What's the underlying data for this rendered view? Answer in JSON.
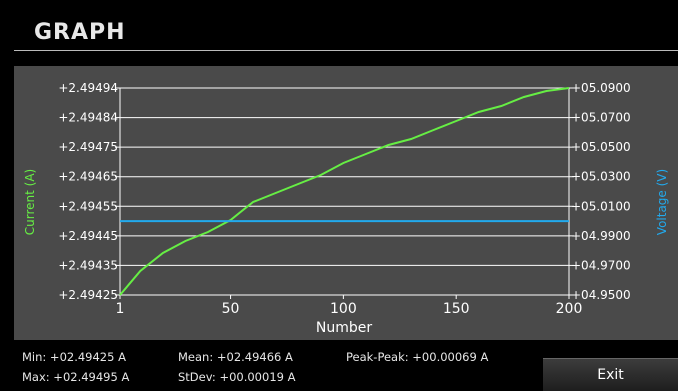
{
  "title": "GRAPH",
  "stats": {
    "min": "Min: +02.49425 A",
    "max": "Max: +02.49495 A",
    "mean": "Mean: +02.49466 A",
    "stdev": "StDev: +00.00019 A",
    "peak_peak": "Peak-Peak: +00.00069 A"
  },
  "exit_label": "Exit",
  "chart_data": {
    "type": "line",
    "xlabel": "Number",
    "ylabel_left": "Current (A)",
    "ylabel_right": "Voltage (V)",
    "x_ticks": [
      "1",
      "50",
      "100",
      "150",
      "200"
    ],
    "xlim": [
      1,
      200
    ],
    "y_left_ticks": [
      "+2.49494",
      "+2.49484",
      "+2.49475",
      "+2.49465",
      "+2.49455",
      "+2.49445",
      "+2.49435",
      "+2.49425"
    ],
    "y_left_lim": [
      2.49425,
      2.49494
    ],
    "y_right_ticks": [
      "+05.0900",
      "+05.0700",
      "+05.0500",
      "+05.0300",
      "+05.0100",
      "+04.9900",
      "+04.9700",
      "+04.9500"
    ],
    "y_right_lim": [
      4.95,
      5.09
    ],
    "grid": true,
    "colors": {
      "current": "#66ee44",
      "voltage": "#22aaee",
      "grid": "#ffffff",
      "panel": "#4a4a4a"
    },
    "series": [
      {
        "name": "Current (A)",
        "axis": "left",
        "x": [
          1,
          10,
          20,
          30,
          40,
          50,
          55,
          60,
          70,
          80,
          90,
          100,
          110,
          120,
          130,
          140,
          150,
          160,
          170,
          180,
          190,
          200
        ],
        "y": [
          2.49425,
          2.49433,
          2.49439,
          2.49443,
          2.49446,
          2.4945,
          2.49453,
          2.49456,
          2.49459,
          2.49462,
          2.49465,
          2.49469,
          2.49472,
          2.49475,
          2.49477,
          2.4948,
          2.49483,
          2.49486,
          2.49488,
          2.49491,
          2.49493,
          2.49494
        ]
      },
      {
        "name": "Voltage (V)",
        "axis": "right",
        "x": [
          1,
          200
        ],
        "y": [
          5.0,
          5.0
        ]
      }
    ]
  }
}
